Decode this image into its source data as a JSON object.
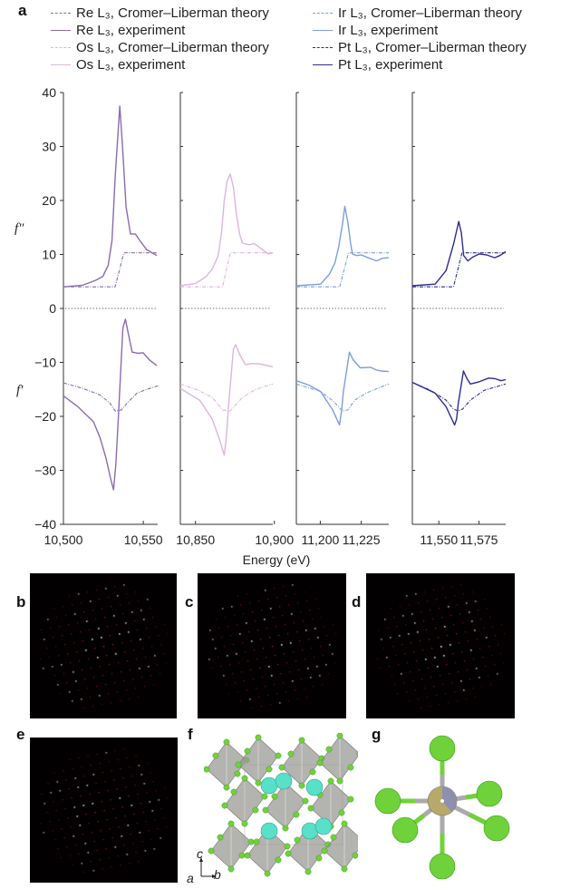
{
  "panel_labels": {
    "a": "a",
    "b": "b",
    "c": "c",
    "d": "d",
    "e": "e",
    "f": "f",
    "g": "g"
  },
  "legend": [
    {
      "label": "Re L₃, Cromer–Liberman theory",
      "color": "#8a6bb0",
      "style": "dash"
    },
    {
      "label": "Re L₃, experiment",
      "color": "#8a6bb0",
      "style": "solid"
    },
    {
      "label": "Os L₃, Cromer–Liberman theory",
      "color": "#dbb6dc",
      "style": "dash"
    },
    {
      "label": "Os L₃, experiment",
      "color": "#dbb6dc",
      "style": "solid"
    },
    {
      "label": "Ir L₃, Cromer–Liberman theory",
      "color": "#7b9fdc",
      "style": "dash"
    },
    {
      "label": "Ir L₃, experiment",
      "color": "#7b9fdc",
      "style": "solid"
    },
    {
      "label": "Pt L₃, Cromer–Liberman theory",
      "color": "#2c2c8e",
      "style": "dash"
    },
    {
      "label": "Pt L₃, experiment",
      "color": "#2c2c8e",
      "style": "solid"
    }
  ],
  "chart_data": {
    "type": "line",
    "xlabel": "Energy (eV)",
    "ylabels": {
      "upper": "f″",
      "lower": "f′"
    },
    "ylim": [
      -40,
      40
    ],
    "yticks": [
      40,
      30,
      20,
      10,
      0,
      -10,
      -20,
      -30,
      -40
    ],
    "ytick_labels": [
      "40",
      "30",
      "20",
      "10",
      "0",
      "−10",
      "−20",
      "−30",
      "−40"
    ],
    "zero_line": "dotted",
    "panels": [
      {
        "element": "Re",
        "color": "#8a6bb0",
        "xlim": [
          10500,
          10559
        ],
        "xticks": [
          10500,
          10550
        ],
        "xtick_labels": [
          "10,500",
          "10,550"
        ],
        "theory_f2": [
          [
            10500,
            4
          ],
          [
            10532.4,
            4
          ],
          [
            10537.8,
            10.3
          ],
          [
            10559,
            10.3
          ]
        ],
        "exp_f2": [
          [
            10500,
            4
          ],
          [
            10512,
            4.3
          ],
          [
            10520,
            5.2
          ],
          [
            10524.6,
            5.9
          ],
          [
            10528,
            8
          ],
          [
            10530.4,
            12.6
          ],
          [
            10532.4,
            24.4
          ],
          [
            10535.3,
            37.5
          ],
          [
            10537,
            30
          ],
          [
            10539.2,
            18.8
          ],
          [
            10542,
            13.8
          ],
          [
            10545,
            13.8
          ],
          [
            10548,
            12.5
          ],
          [
            10552,
            10.9
          ],
          [
            10558.5,
            9.8
          ]
        ],
        "theory_f1": [
          [
            10500,
            -13.8
          ],
          [
            10512,
            -14.8
          ],
          [
            10522.7,
            -16
          ],
          [
            10529,
            -17.5
          ],
          [
            10532.4,
            -19
          ],
          [
            10536.3,
            -18.8
          ],
          [
            10540,
            -17.5
          ],
          [
            10546,
            -15.7
          ],
          [
            10552,
            -15
          ],
          [
            10559.5,
            -14.3
          ]
        ],
        "exp_f1": [
          [
            10500,
            -16.2
          ],
          [
            10509,
            -18.2
          ],
          [
            10518.8,
            -21
          ],
          [
            10523,
            -24
          ],
          [
            10526.6,
            -27.7
          ],
          [
            10529.5,
            -31.5
          ],
          [
            10531.4,
            -33.6
          ],
          [
            10532.8,
            -29
          ],
          [
            10534.3,
            -20.5
          ],
          [
            10537.2,
            -3.6
          ],
          [
            10538.8,
            -2
          ],
          [
            10540.5,
            -4.5
          ],
          [
            10543,
            -8.1
          ],
          [
            10547,
            -8.3
          ],
          [
            10549.8,
            -8.2
          ],
          [
            10554,
            -9.6
          ],
          [
            10558.5,
            -10.6
          ]
        ]
      },
      {
        "element": "Os",
        "color": "#dbb6dc",
        "xlim": [
          10840.4,
          10899
        ],
        "xticks": [
          10850,
          10900
        ],
        "xtick_labels": [
          "10,850",
          "10,900"
        ],
        "theory_f2": [
          [
            10840.4,
            4
          ],
          [
            10867.2,
            4
          ],
          [
            10872,
            10.3
          ],
          [
            10899,
            10.3
          ]
        ],
        "exp_f2": [
          [
            10840.4,
            4.2
          ],
          [
            10850,
            4.6
          ],
          [
            10856.7,
            5.9
          ],
          [
            10861,
            7.5
          ],
          [
            10864.4,
            9.8
          ],
          [
            10866.5,
            14
          ],
          [
            10868.2,
            19.9
          ],
          [
            10870,
            23.5
          ],
          [
            10872,
            24.9
          ],
          [
            10874,
            22.5
          ],
          [
            10875.9,
            17.6
          ],
          [
            10878,
            13.8
          ],
          [
            10879.7,
            12.1
          ],
          [
            10884,
            11.8
          ],
          [
            10887.4,
            12
          ],
          [
            10892,
            11
          ],
          [
            10896,
            10.1
          ],
          [
            10899,
            10.3
          ]
        ],
        "theory_f1": [
          [
            10840.4,
            -14
          ],
          [
            10852,
            -15.2
          ],
          [
            10860.6,
            -16.5
          ],
          [
            10865,
            -18
          ],
          [
            10867.2,
            -18.8
          ],
          [
            10872,
            -19
          ],
          [
            10875,
            -18
          ],
          [
            10879.7,
            -16.5
          ],
          [
            10888,
            -15
          ],
          [
            10899,
            -14
          ]
        ],
        "exp_f1": [
          [
            10840.4,
            -14.8
          ],
          [
            10852.9,
            -17.1
          ],
          [
            10860.6,
            -20.5
          ],
          [
            10865.4,
            -24.4
          ],
          [
            10868.2,
            -27.2
          ],
          [
            10869.5,
            -24
          ],
          [
            10871.1,
            -17.6
          ],
          [
            10874,
            -7.6
          ],
          [
            10875.5,
            -6.7
          ],
          [
            10878,
            -8.5
          ],
          [
            10881.6,
            -10.4
          ],
          [
            10886,
            -10.2
          ],
          [
            10891.2,
            -10.3
          ],
          [
            10899,
            -10.8
          ]
        ]
      },
      {
        "element": "Ir",
        "color": "#7b9fdc",
        "xlim": [
          11185.4,
          11241.8
        ],
        "xticks": [
          11200,
          11225
        ],
        "xtick_labels": [
          "11,200",
          "11,225"
        ],
        "theory_f2": [
          [
            11185.4,
            4
          ],
          [
            11211.9,
            4
          ],
          [
            11217.2,
            10.3
          ],
          [
            11241.8,
            10.3
          ]
        ],
        "exp_f2": [
          [
            11185.4,
            4.2
          ],
          [
            11200.2,
            4.5
          ],
          [
            11205.7,
            6.4
          ],
          [
            11209,
            8.5
          ],
          [
            11211.3,
            11.5
          ],
          [
            11213.5,
            15.5
          ],
          [
            11215,
            18.9
          ],
          [
            11216.8,
            16
          ],
          [
            11218.5,
            12
          ],
          [
            11219.6,
            10.1
          ],
          [
            11222,
            9.8
          ],
          [
            11225.2,
            9.9
          ],
          [
            11230,
            9.3
          ],
          [
            11234.4,
            8.8
          ],
          [
            11238,
            9.3
          ],
          [
            11241.8,
            9.4
          ]
        ],
        "theory_f1": [
          [
            11185.4,
            -14
          ],
          [
            11200.2,
            -15.4
          ],
          [
            11208,
            -17.2
          ],
          [
            11213.5,
            -19
          ],
          [
            11216.8,
            -18.8
          ],
          [
            11221,
            -17
          ],
          [
            11227.9,
            -15.7
          ],
          [
            11235,
            -14.8
          ],
          [
            11241.8,
            -14
          ]
        ],
        "exp_f1": [
          [
            11185.4,
            -13.4
          ],
          [
            11193,
            -14.2
          ],
          [
            11200.2,
            -15.4
          ],
          [
            11207.6,
            -18.8
          ],
          [
            11211.7,
            -21.6
          ],
          [
            11213,
            -19
          ],
          [
            11214.1,
            -15.4
          ],
          [
            11217.8,
            -8.1
          ],
          [
            11220,
            -9.5
          ],
          [
            11224.3,
            -11
          ],
          [
            11230.7,
            -10.9
          ],
          [
            11234,
            -11.4
          ],
          [
            11237.2,
            -11.6
          ],
          [
            11241.8,
            -11.7
          ]
        ]
      },
      {
        "element": "Pt",
        "color": "#2c2c8e",
        "xlim": [
          11533.5,
          11591.6
        ],
        "xticks": [
          11550,
          11575
        ],
        "xtick_labels": [
          "11,550",
          "11,575"
        ],
        "theory_f2": [
          [
            11533.5,
            4
          ],
          [
            11559.1,
            4
          ],
          [
            11564.4,
            10.3
          ],
          [
            11591.6,
            10.3
          ]
        ],
        "exp_f2": [
          [
            11533.5,
            4.2
          ],
          [
            11547.7,
            4.5
          ],
          [
            11554.5,
            7
          ],
          [
            11559.2,
            12
          ],
          [
            11562.4,
            16.1
          ],
          [
            11564,
            14
          ],
          [
            11565.4,
            9.8
          ],
          [
            11568,
            8.8
          ],
          [
            11571,
            9.5
          ],
          [
            11575.2,
            10.1
          ],
          [
            11580,
            9.9
          ],
          [
            11584.7,
            9.4
          ],
          [
            11588,
            9.8
          ],
          [
            11591.6,
            10.5
          ]
        ],
        "theory_f1": [
          [
            11533.5,
            -13.7
          ],
          [
            11545,
            -15.2
          ],
          [
            11554.5,
            -17
          ],
          [
            11559,
            -18.6
          ],
          [
            11562.1,
            -19
          ],
          [
            11565,
            -18.6
          ],
          [
            11569.6,
            -17
          ],
          [
            11578,
            -15.2
          ],
          [
            11591.6,
            -14
          ]
        ],
        "exp_f1": [
          [
            11533.5,
            -13.7
          ],
          [
            11547.7,
            -15.7
          ],
          [
            11554.5,
            -18.2
          ],
          [
            11559.8,
            -21.6
          ],
          [
            11561,
            -20.5
          ],
          [
            11562.1,
            -17.6
          ],
          [
            11565.3,
            -11.6
          ],
          [
            11567.5,
            -13
          ],
          [
            11569.6,
            -14
          ],
          [
            11575,
            -13.6
          ],
          [
            11581,
            -12.9
          ],
          [
            11585,
            -13
          ],
          [
            11588.6,
            -13.4
          ],
          [
            11591.6,
            -13.2
          ]
        ]
      }
    ]
  },
  "structure": {
    "axis_labels": {
      "c": "c",
      "a": "a",
      "b": "b"
    },
    "colors": {
      "halide": "#6fd23a",
      "cation": "#58e0c8",
      "octahedron": "#9a9a94",
      "metal": "#b7a96a"
    }
  }
}
